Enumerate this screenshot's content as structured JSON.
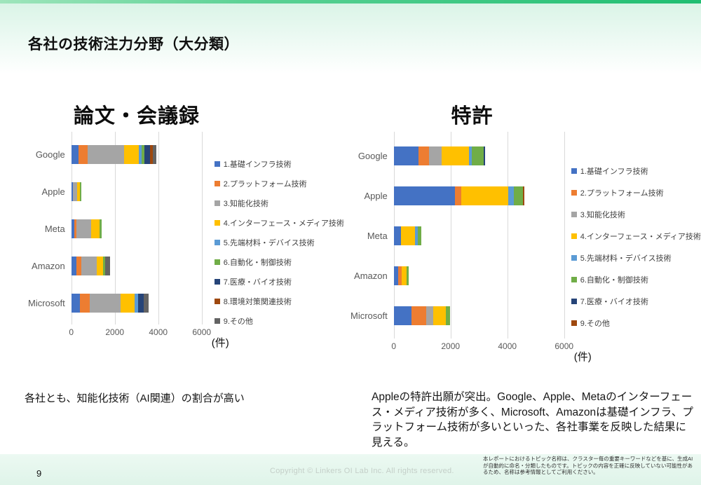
{
  "slide": {
    "title": "各社の技術注力分野（大分類）",
    "page_number": "9",
    "copyright": "Copyright © Linkers OI Lab Inc. All rights reserved.",
    "disclaimer": "本レポートにおけるトピック名称は、クラスター毎の重要キーワードなどを基に、生成AIが自動的に命名・分類したものです。トピックの内容を正確に反映していない可能性があるため、名称は参考情報としてご利用ください。",
    "accent_gradient": {
      "from": "#9FE5BC",
      "to": "#1FBE71"
    }
  },
  "notes": {
    "left": "各社とも、知能化技術（AI関連）の割合が高い",
    "right": "Appleの特許出願が突出。Google、Apple、Metaのインターフェース・メディア技術が多く、Microsoft、Amazonは基礎インフラ、プラットフォーム技術が多いといった、各社事業を反映した結果に見える。"
  },
  "chart_data": [
    {
      "type": "bar",
      "orientation": "horizontal",
      "stacked": true,
      "title": "論文・会議録",
      "categories": [
        "Google",
        "Apple",
        "Meta",
        "Amazon",
        "Microsoft"
      ],
      "series": [
        {
          "name": "1.基礎インフラ技術",
          "color": "#4472C4",
          "values": [
            335,
            80,
            140,
            230,
            400
          ]
        },
        {
          "name": "2.プラットフォーム技術",
          "color": "#ED7D31",
          "values": [
            420,
            0,
            110,
            230,
            455
          ]
        },
        {
          "name": "3.知能化技術",
          "color": "#A5A5A5",
          "values": [
            1660,
            200,
            670,
            705,
            1410
          ]
        },
        {
          "name": "4.インターフェース・メディア技術",
          "color": "#FFC000",
          "values": [
            680,
            120,
            380,
            290,
            650
          ]
        },
        {
          "name": "5.先端材料・デバイス技術",
          "color": "#5B9BD5",
          "values": [
            130,
            0,
            0,
            0,
            160
          ]
        },
        {
          "name": "6.自動化・制御技術",
          "color": "#70AD47",
          "values": [
            130,
            65,
            110,
            90,
            0
          ]
        },
        {
          "name": "7.医療・バイオ技術",
          "color": "#264478",
          "values": [
            260,
            0,
            0,
            0,
            270
          ]
        },
        {
          "name": "8.環境対策関連技術",
          "color": "#9E480E",
          "values": [
            130,
            0,
            0,
            0,
            0
          ]
        },
        {
          "name": "9.その他",
          "color": "#636363",
          "values": [
            160,
            0,
            0,
            240,
            215
          ]
        }
      ],
      "x_ticks": [
        0,
        2000,
        4000,
        6000
      ],
      "xlim": [
        0,
        6000
      ],
      "unit": "(件)",
      "grid": true,
      "legend_position": "right"
    },
    {
      "type": "bar",
      "orientation": "horizontal",
      "stacked": true,
      "title": "特許",
      "categories": [
        "Google",
        "Apple",
        "Meta",
        "Amazon",
        "Microsoft"
      ],
      "series": [
        {
          "name": "1.基礎インフラ技術",
          "color": "#4472C4",
          "values": [
            880,
            2160,
            260,
            165,
            634
          ]
        },
        {
          "name": "2.プラットフォーム技術",
          "color": "#ED7D31",
          "values": [
            370,
            210,
            0,
            115,
            518
          ]
        },
        {
          "name": "3.知能化技術",
          "color": "#A5A5A5",
          "values": [
            440,
            0,
            0,
            0,
            247
          ]
        },
        {
          "name": "4.インターフェース・メディア技術",
          "color": "#FFC000",
          "values": [
            950,
            1660,
            490,
            165,
            444
          ]
        },
        {
          "name": "5.先端材料・デバイス技術",
          "color": "#5B9BD5",
          "values": [
            100,
            190,
            100,
            0,
            0
          ]
        },
        {
          "name": "6.自動化・制御技術",
          "color": "#70AD47",
          "values": [
            430,
            330,
            130,
            90,
            130
          ]
        },
        {
          "name": "7.医療・バイオ技術",
          "color": "#264478",
          "values": [
            40,
            0,
            0,
            0,
            0
          ]
        },
        {
          "name": "9.その他",
          "color": "#9E480E",
          "values": [
            0,
            60,
            0,
            0,
            0
          ]
        }
      ],
      "x_ticks": [
        0,
        2000,
        4000,
        6000
      ],
      "xlim": [
        0,
        6000
      ],
      "unit": "(件)",
      "grid": true,
      "legend_position": "right"
    }
  ]
}
